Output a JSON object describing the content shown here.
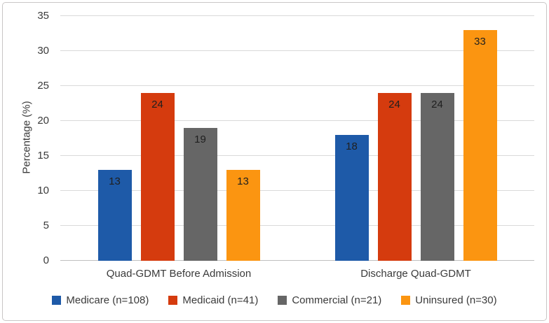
{
  "figure": {
    "colors": {
      "background": "#ffffff",
      "frame_border": "#c9c6c6",
      "gridline": "#d9d9d9",
      "axis_line": "#bfbfbf",
      "axis_text": "#3a3a3a",
      "value_label_text": "#1f1f1f"
    }
  },
  "chart_data": {
    "type": "bar",
    "title": "",
    "xlabel": "",
    "ylabel": "Percentage (%)",
    "ylim": [
      0,
      35
    ],
    "yticks": [
      0,
      5,
      10,
      15,
      20,
      25,
      30,
      35
    ],
    "grid": true,
    "legend_position": "bottom",
    "bar_labels_shown": true,
    "categories": [
      "Quad-GDMT Before Admission",
      "Discharge Quad-GDMT"
    ],
    "series": [
      {
        "name": "Medicare (n=108)",
        "color": "#1e5aa8",
        "values": [
          13,
          18
        ]
      },
      {
        "name": "Medicaid (n=41)",
        "color": "#d53b0e",
        "values": [
          24,
          24
        ]
      },
      {
        "name": "Commercial (n=21)",
        "color": "#666666",
        "values": [
          19,
          24
        ]
      },
      {
        "name": "Uninsured (n=30)",
        "color": "#fb9511",
        "values": [
          13,
          33
        ]
      }
    ]
  }
}
